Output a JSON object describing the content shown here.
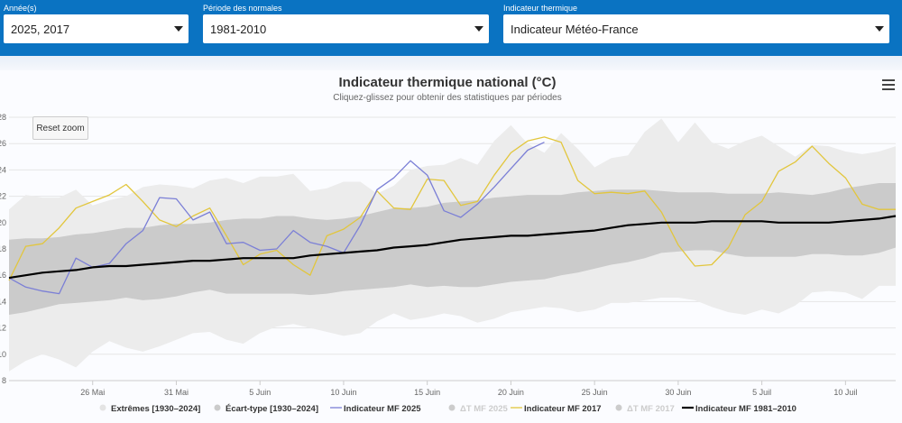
{
  "filters": {
    "year": {
      "label": "Année(s)",
      "value": "2025, 2017"
    },
    "period": {
      "label": "Période des normales",
      "value": "1981-2010"
    },
    "indicator": {
      "label": "Indicateur thermique",
      "value": "Indicateur Météo-France"
    }
  },
  "chart": {
    "reset_zoom_label": "Reset zoom",
    "menu_icon": "hamburger-menu-icon"
  },
  "chart_data": {
    "type": "line",
    "title": "Indicateur thermique national (°C)",
    "subtitle": "Cliquez-glissez pour obtenir des statistiques par périodes",
    "xlabel": "",
    "ylabel": "",
    "xlim": [
      0,
      53
    ],
    "ylim": [
      8,
      28
    ],
    "y_ticks": [
      8,
      10,
      12,
      14,
      16,
      18,
      20,
      22,
      24,
      26,
      28
    ],
    "x_ticks": [
      {
        "day": 5,
        "label": "26 Mai"
      },
      {
        "day": 10,
        "label": "31 Mai"
      },
      {
        "day": 15,
        "label": "5 Juin"
      },
      {
        "day": 20,
        "label": "10 Juin"
      },
      {
        "day": 25,
        "label": "15 Juin"
      },
      {
        "day": 30,
        "label": "20 Juin"
      },
      {
        "day": 35,
        "label": "25 Juin"
      },
      {
        "day": 40,
        "label": "30 Juin"
      },
      {
        "day": 45,
        "label": "5 Juil"
      },
      {
        "day": 50,
        "label": "10 Juil"
      }
    ],
    "x_note": "x = days since 21 Mai",
    "colors": {
      "extremes": "#ececec",
      "ecart_type": "#cbcbcb",
      "mf2025": "#7b7fd6",
      "mf2017": "#e2c63c",
      "normal": "#000000"
    },
    "series": [
      {
        "name": "Extrêmes [1930–2024]",
        "type": "arearange",
        "x": [
          0,
          1,
          2,
          3,
          4,
          5,
          6,
          7,
          8,
          9,
          10,
          11,
          12,
          13,
          14,
          15,
          16,
          17,
          18,
          19,
          20,
          21,
          22,
          23,
          24,
          25,
          26,
          27,
          28,
          29,
          30,
          31,
          32,
          33,
          34,
          35,
          36,
          37,
          38,
          39,
          40,
          41,
          42,
          43,
          44,
          45,
          46,
          47,
          48,
          49,
          50,
          51,
          52,
          53
        ],
        "low": [
          8.7,
          9.5,
          10.0,
          9.6,
          9.0,
          10.2,
          11.0,
          10.5,
          10.2,
          10.6,
          11.1,
          11.6,
          11.7,
          11.1,
          10.8,
          11.6,
          12.1,
          12.3,
          12.0,
          11.7,
          11.4,
          11.6,
          12.5,
          13.1,
          12.6,
          12.8,
          13.1,
          12.9,
          12.4,
          12.7,
          13.2,
          13.4,
          13.6,
          13.5,
          13.2,
          13.4,
          13.9,
          13.9,
          14.1,
          14.3,
          14.3,
          14.1,
          13.6,
          13.2,
          13.0,
          13.4,
          13.1,
          13.7,
          14.7,
          14.8,
          14.7,
          14.2,
          15.2,
          15.2
        ],
        "high": [
          21.0,
          22.1,
          21.9,
          21.9,
          22.5,
          21.3,
          21.7,
          22.0,
          22.7,
          22.9,
          22.8,
          22.6,
          23.2,
          23.4,
          23.0,
          23.5,
          23.5,
          23.7,
          22.4,
          22.6,
          23.1,
          23.1,
          22.2,
          22.8,
          24.0,
          24.3,
          24.4,
          24.9,
          24.4,
          26.2,
          27.4,
          26.0,
          25.3,
          26.8,
          25.6,
          24.2,
          24.9,
          25.1,
          26.9,
          27.9,
          26.1,
          27.6,
          26.1,
          25.6,
          26.2,
          26.6,
          25.8,
          25.0,
          25.9,
          25.8,
          25.4,
          25.2,
          25.4,
          25.8
        ]
      },
      {
        "name": "Écart-type [1930–2024]",
        "type": "arearange",
        "x": [
          0,
          1,
          2,
          3,
          4,
          5,
          6,
          7,
          8,
          9,
          10,
          11,
          12,
          13,
          14,
          15,
          16,
          17,
          18,
          19,
          20,
          21,
          22,
          23,
          24,
          25,
          26,
          27,
          28,
          29,
          30,
          31,
          32,
          33,
          34,
          35,
          36,
          37,
          38,
          39,
          40,
          41,
          42,
          43,
          44,
          45,
          46,
          47,
          48,
          49,
          50,
          51,
          52,
          53
        ],
        "low": [
          13.0,
          13.2,
          13.5,
          13.8,
          13.9,
          14.0,
          14.1,
          14.3,
          14.1,
          14.2,
          14.4,
          14.7,
          14.9,
          14.6,
          14.6,
          14.6,
          14.6,
          14.6,
          14.5,
          14.6,
          14.8,
          14.9,
          15.0,
          15.1,
          15.3,
          15.1,
          15.2,
          15.1,
          15.1,
          15.3,
          15.5,
          15.6,
          15.7,
          16.0,
          16.2,
          16.5,
          16.8,
          17.0,
          17.3,
          17.7,
          17.8,
          17.9,
          17.9,
          17.6,
          17.4,
          17.4,
          17.4,
          17.4,
          17.6,
          17.6,
          17.5,
          17.5,
          17.7,
          18.1
        ],
        "high": [
          18.7,
          18.8,
          18.8,
          18.9,
          19.1,
          19.2,
          19.4,
          19.6,
          19.6,
          19.8,
          19.9,
          19.9,
          20.0,
          20.2,
          20.3,
          20.3,
          20.5,
          20.5,
          20.3,
          20.2,
          20.3,
          20.5,
          20.8,
          21.1,
          21.1,
          21.2,
          21.5,
          21.6,
          21.7,
          21.9,
          22.0,
          22.1,
          22.1,
          22.1,
          22.3,
          22.4,
          22.5,
          22.5,
          22.5,
          22.4,
          22.3,
          22.3,
          22.3,
          22.2,
          22.2,
          22.2,
          22.3,
          22.2,
          22.1,
          22.3,
          22.6,
          22.8,
          23.0,
          23.0
        ]
      },
      {
        "name": "Indicateur MF 2025",
        "type": "line",
        "x": [
          0,
          1,
          2,
          3,
          4,
          5,
          6,
          7,
          8,
          9,
          10,
          11,
          12,
          13,
          14,
          15,
          16,
          17,
          18,
          19,
          20,
          21,
          22,
          23,
          24,
          25,
          26,
          27,
          28,
          29,
          30,
          31,
          32
        ],
        "values": [
          15.8,
          15.1,
          14.8,
          14.6,
          17.3,
          16.6,
          16.9,
          18.4,
          19.4,
          21.9,
          21.8,
          20.2,
          20.8,
          18.4,
          18.5,
          17.9,
          18.0,
          19.4,
          18.5,
          18.2,
          17.7,
          19.8,
          22.5,
          23.4,
          24.7,
          23.6,
          20.9,
          20.4,
          21.4,
          22.7,
          24.1,
          25.5,
          26.1
        ]
      },
      {
        "name": "ΔT MF 2025",
        "type": "hidden",
        "values": []
      },
      {
        "name": "Indicateur MF 2017",
        "type": "line",
        "x": [
          0,
          1,
          2,
          3,
          4,
          5,
          6,
          7,
          8,
          9,
          10,
          11,
          12,
          13,
          14,
          15,
          16,
          17,
          18,
          19,
          20,
          21,
          22,
          23,
          24,
          25,
          26,
          27,
          28,
          29,
          30,
          31,
          32,
          33,
          34,
          35,
          36,
          37,
          38,
          39,
          40,
          41,
          42,
          43,
          44,
          45,
          46,
          47,
          48,
          49,
          50,
          51,
          52,
          53
        ],
        "values": [
          15.6,
          18.2,
          18.4,
          19.6,
          21.1,
          21.6,
          22.1,
          22.9,
          21.6,
          20.2,
          19.7,
          20.5,
          21.1,
          19.0,
          16.8,
          17.6,
          17.9,
          16.8,
          16.0,
          19.0,
          19.5,
          20.4,
          22.4,
          21.1,
          21.0,
          23.3,
          23.2,
          21.3,
          21.6,
          23.6,
          25.3,
          26.2,
          26.5,
          26.1,
          23.2,
          22.2,
          22.3,
          22.2,
          22.4,
          20.8,
          18.3,
          16.7,
          16.8,
          18.1,
          20.6,
          21.6,
          23.9,
          24.6,
          25.8,
          24.5,
          23.4,
          21.4,
          21.0,
          21.0
        ]
      },
      {
        "name": "ΔT MF 2017",
        "type": "hidden",
        "values": []
      },
      {
        "name": "Indicateur MF 1981–2010",
        "type": "line",
        "x": [
          0,
          1,
          2,
          3,
          4,
          5,
          6,
          7,
          8,
          9,
          10,
          11,
          12,
          13,
          14,
          15,
          16,
          17,
          18,
          19,
          20,
          21,
          22,
          23,
          24,
          25,
          26,
          27,
          28,
          29,
          30,
          31,
          32,
          33,
          34,
          35,
          36,
          37,
          38,
          39,
          40,
          41,
          42,
          43,
          44,
          45,
          46,
          47,
          48,
          49,
          50,
          51,
          52,
          53
        ],
        "values": [
          15.8,
          16.0,
          16.2,
          16.3,
          16.4,
          16.6,
          16.7,
          16.7,
          16.8,
          16.9,
          17.0,
          17.1,
          17.1,
          17.2,
          17.3,
          17.3,
          17.3,
          17.3,
          17.5,
          17.6,
          17.7,
          17.8,
          17.9,
          18.1,
          18.2,
          18.3,
          18.5,
          18.7,
          18.8,
          18.9,
          19.0,
          19.0,
          19.1,
          19.2,
          19.3,
          19.4,
          19.6,
          19.8,
          19.9,
          20.0,
          20.0,
          20.0,
          20.1,
          20.1,
          20.1,
          20.1,
          20.0,
          20.0,
          20.0,
          20.0,
          20.1,
          20.2,
          20.3,
          20.5
        ]
      }
    ],
    "legend": {
      "position": "bottom",
      "items": [
        {
          "name": "Extrêmes [1930–2024]",
          "symbol": "dot",
          "color": "#e4e4e4",
          "active": true
        },
        {
          "name": "Écart-type [1930–2024]",
          "symbol": "dot",
          "color": "#cbcbcb",
          "active": true
        },
        {
          "name": "Indicateur MF 2025",
          "symbol": "line",
          "color": "#7b7fd6",
          "active": true
        },
        {
          "name": "ΔT MF 2025",
          "symbol": "dot",
          "color": "#cccccc",
          "active": false
        },
        {
          "name": "Indicateur MF 2017",
          "symbol": "line",
          "color": "#e2c63c",
          "active": true
        },
        {
          "name": "ΔT MF 2017",
          "symbol": "dot",
          "color": "#cccccc",
          "active": false
        },
        {
          "name": "Indicateur MF 1981–2010",
          "symbol": "line",
          "color": "#000000",
          "active": true
        }
      ]
    }
  }
}
